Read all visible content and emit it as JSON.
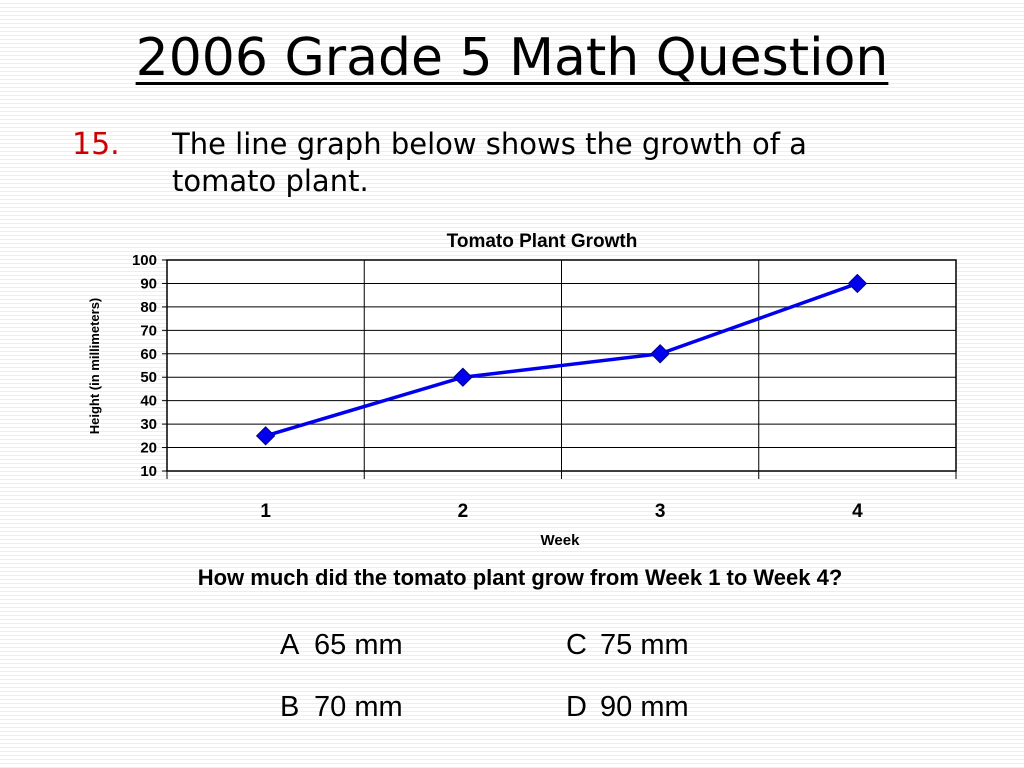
{
  "slide": {
    "title": "2006 Grade 5 Math Question",
    "question_number": "15.",
    "question_text": "The line graph below shows the growth of a tomato plant.",
    "prompt": "How much did the tomato plant grow from Week 1 to Week 4?"
  },
  "answers": [
    {
      "letter": "A",
      "text": "65 mm"
    },
    {
      "letter": "C",
      "text": "75 mm"
    },
    {
      "letter": "B",
      "text": "70 mm"
    },
    {
      "letter": "D",
      "text": "90 mm"
    }
  ],
  "chart_data": {
    "type": "line",
    "title": "Tomato Plant Growth",
    "xlabel": "Week",
    "ylabel": "Height (in millimeters)",
    "categories": [
      "1",
      "2",
      "3",
      "4"
    ],
    "series": [
      {
        "values": [
          25,
          50,
          60,
          90
        ]
      }
    ],
    "ylim": [
      10,
      100
    ],
    "yticks": [
      10,
      20,
      30,
      40,
      50,
      60,
      70,
      80,
      90,
      100
    ],
    "grid": true,
    "legend": "none",
    "line_color": "#0000ee",
    "marker": "diamond"
  }
}
